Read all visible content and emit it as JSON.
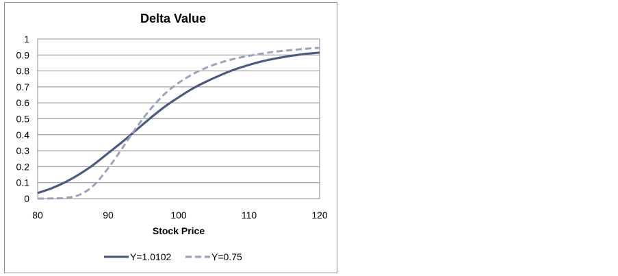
{
  "chart_data": {
    "type": "line",
    "title": "Delta Value",
    "xlabel": "Stock Price",
    "ylabel": "",
    "xlim": [
      80,
      120
    ],
    "ylim": [
      0,
      1
    ],
    "xticks": [
      80,
      90,
      100,
      110,
      120
    ],
    "yticks": [
      0,
      0.1,
      0.2,
      0.3,
      0.4,
      0.5,
      0.6,
      0.7,
      0.8,
      0.9,
      1
    ],
    "grid": "horizontal",
    "legend_position": "bottom",
    "series": [
      {
        "name": "Y=1.0102",
        "style": "solid",
        "color": "#4a5a82",
        "x": [
          80,
          82,
          84,
          86,
          88,
          90,
          92,
          94,
          96,
          98,
          100,
          102,
          104,
          106,
          108,
          110,
          112,
          114,
          116,
          118,
          120
        ],
        "y": [
          0.035,
          0.065,
          0.105,
          0.155,
          0.215,
          0.285,
          0.355,
          0.43,
          0.505,
          0.575,
          0.635,
          0.69,
          0.735,
          0.775,
          0.81,
          0.838,
          0.862,
          0.88,
          0.895,
          0.907,
          0.915
        ]
      },
      {
        "name": "Y=0.75",
        "style": "dashed",
        "color": "#9aa3bd",
        "x": [
          80,
          82,
          84,
          86,
          88,
          90,
          92,
          94,
          96,
          98,
          100,
          102,
          104,
          106,
          108,
          110,
          112,
          114,
          116,
          118,
          120
        ],
        "y": [
          0.0,
          0.001,
          0.005,
          0.025,
          0.085,
          0.19,
          0.315,
          0.445,
          0.56,
          0.655,
          0.725,
          0.78,
          0.822,
          0.853,
          0.877,
          0.895,
          0.91,
          0.922,
          0.931,
          0.939,
          0.945
        ]
      }
    ]
  }
}
